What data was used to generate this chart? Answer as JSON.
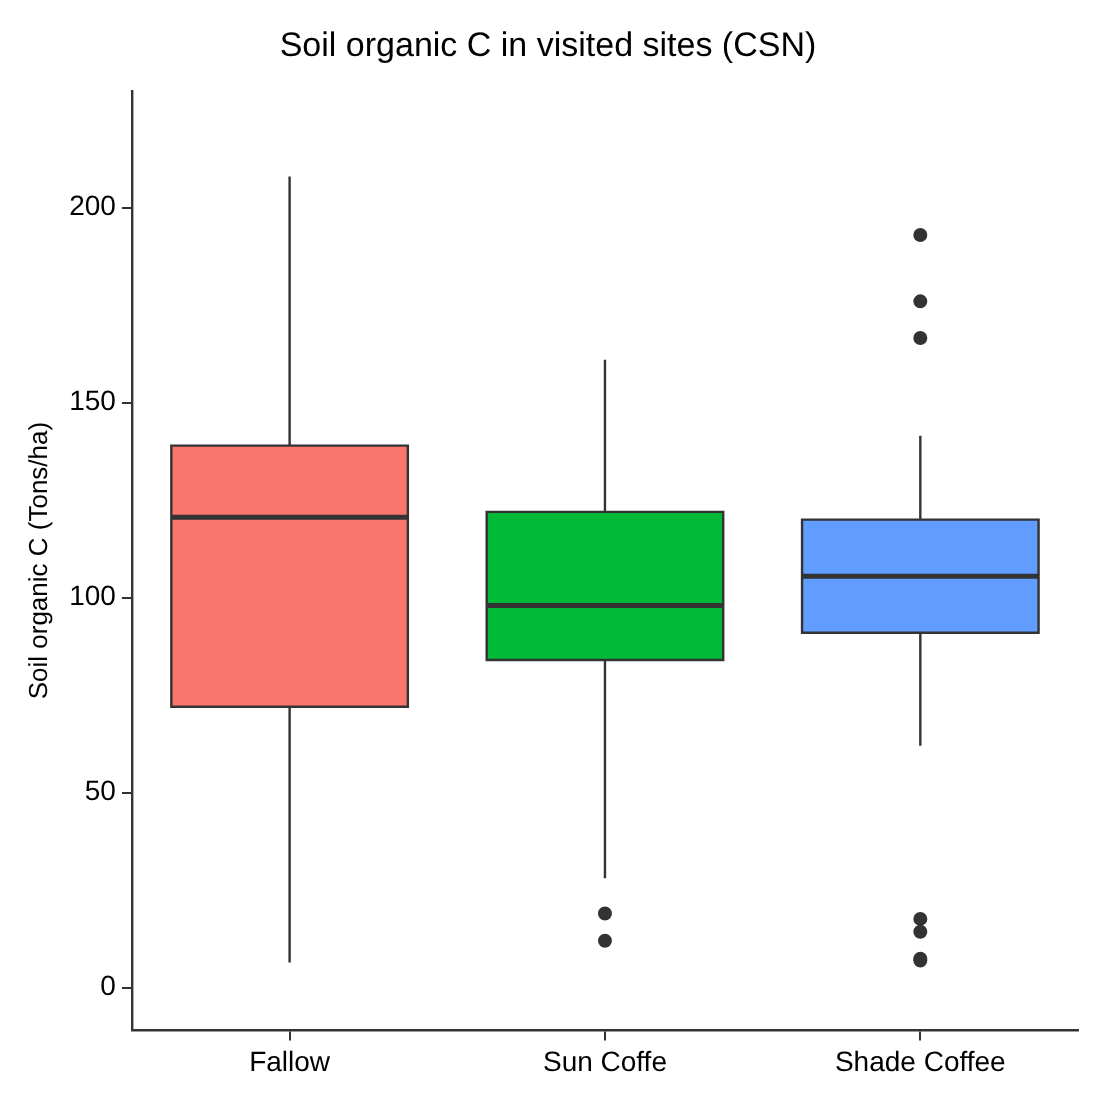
{
  "chart_data": {
    "type": "box",
    "title": "Soil organic C in visited sites (CSN)",
    "ylabel": "Soil organic C (Tons/ha)",
    "categories": [
      "Fallow",
      "Sun Coffe",
      "Shade Coffee"
    ],
    "colors": [
      "#f8766d",
      "#00ba38",
      "#619cff"
    ],
    "boxes": [
      {
        "low": 6.4,
        "q1": 72,
        "median": 120.6,
        "q3": 139,
        "high": 208
      },
      {
        "low": 28,
        "q1": 84,
        "median": 98,
        "q3": 122,
        "high": 161,
        "outliers": [
          19,
          12
        ]
      },
      {
        "low": 62,
        "q1": 91,
        "median": 105.5,
        "q3": 120,
        "high": 141.5,
        "outliers": [
          193,
          176,
          166.6,
          17.6,
          14.3,
          7.4,
          6.9
        ]
      }
    ],
    "ylim": [
      -11,
      230
    ],
    "yticks": [
      0,
      50,
      100,
      150,
      200
    ],
    "grid": false
  }
}
